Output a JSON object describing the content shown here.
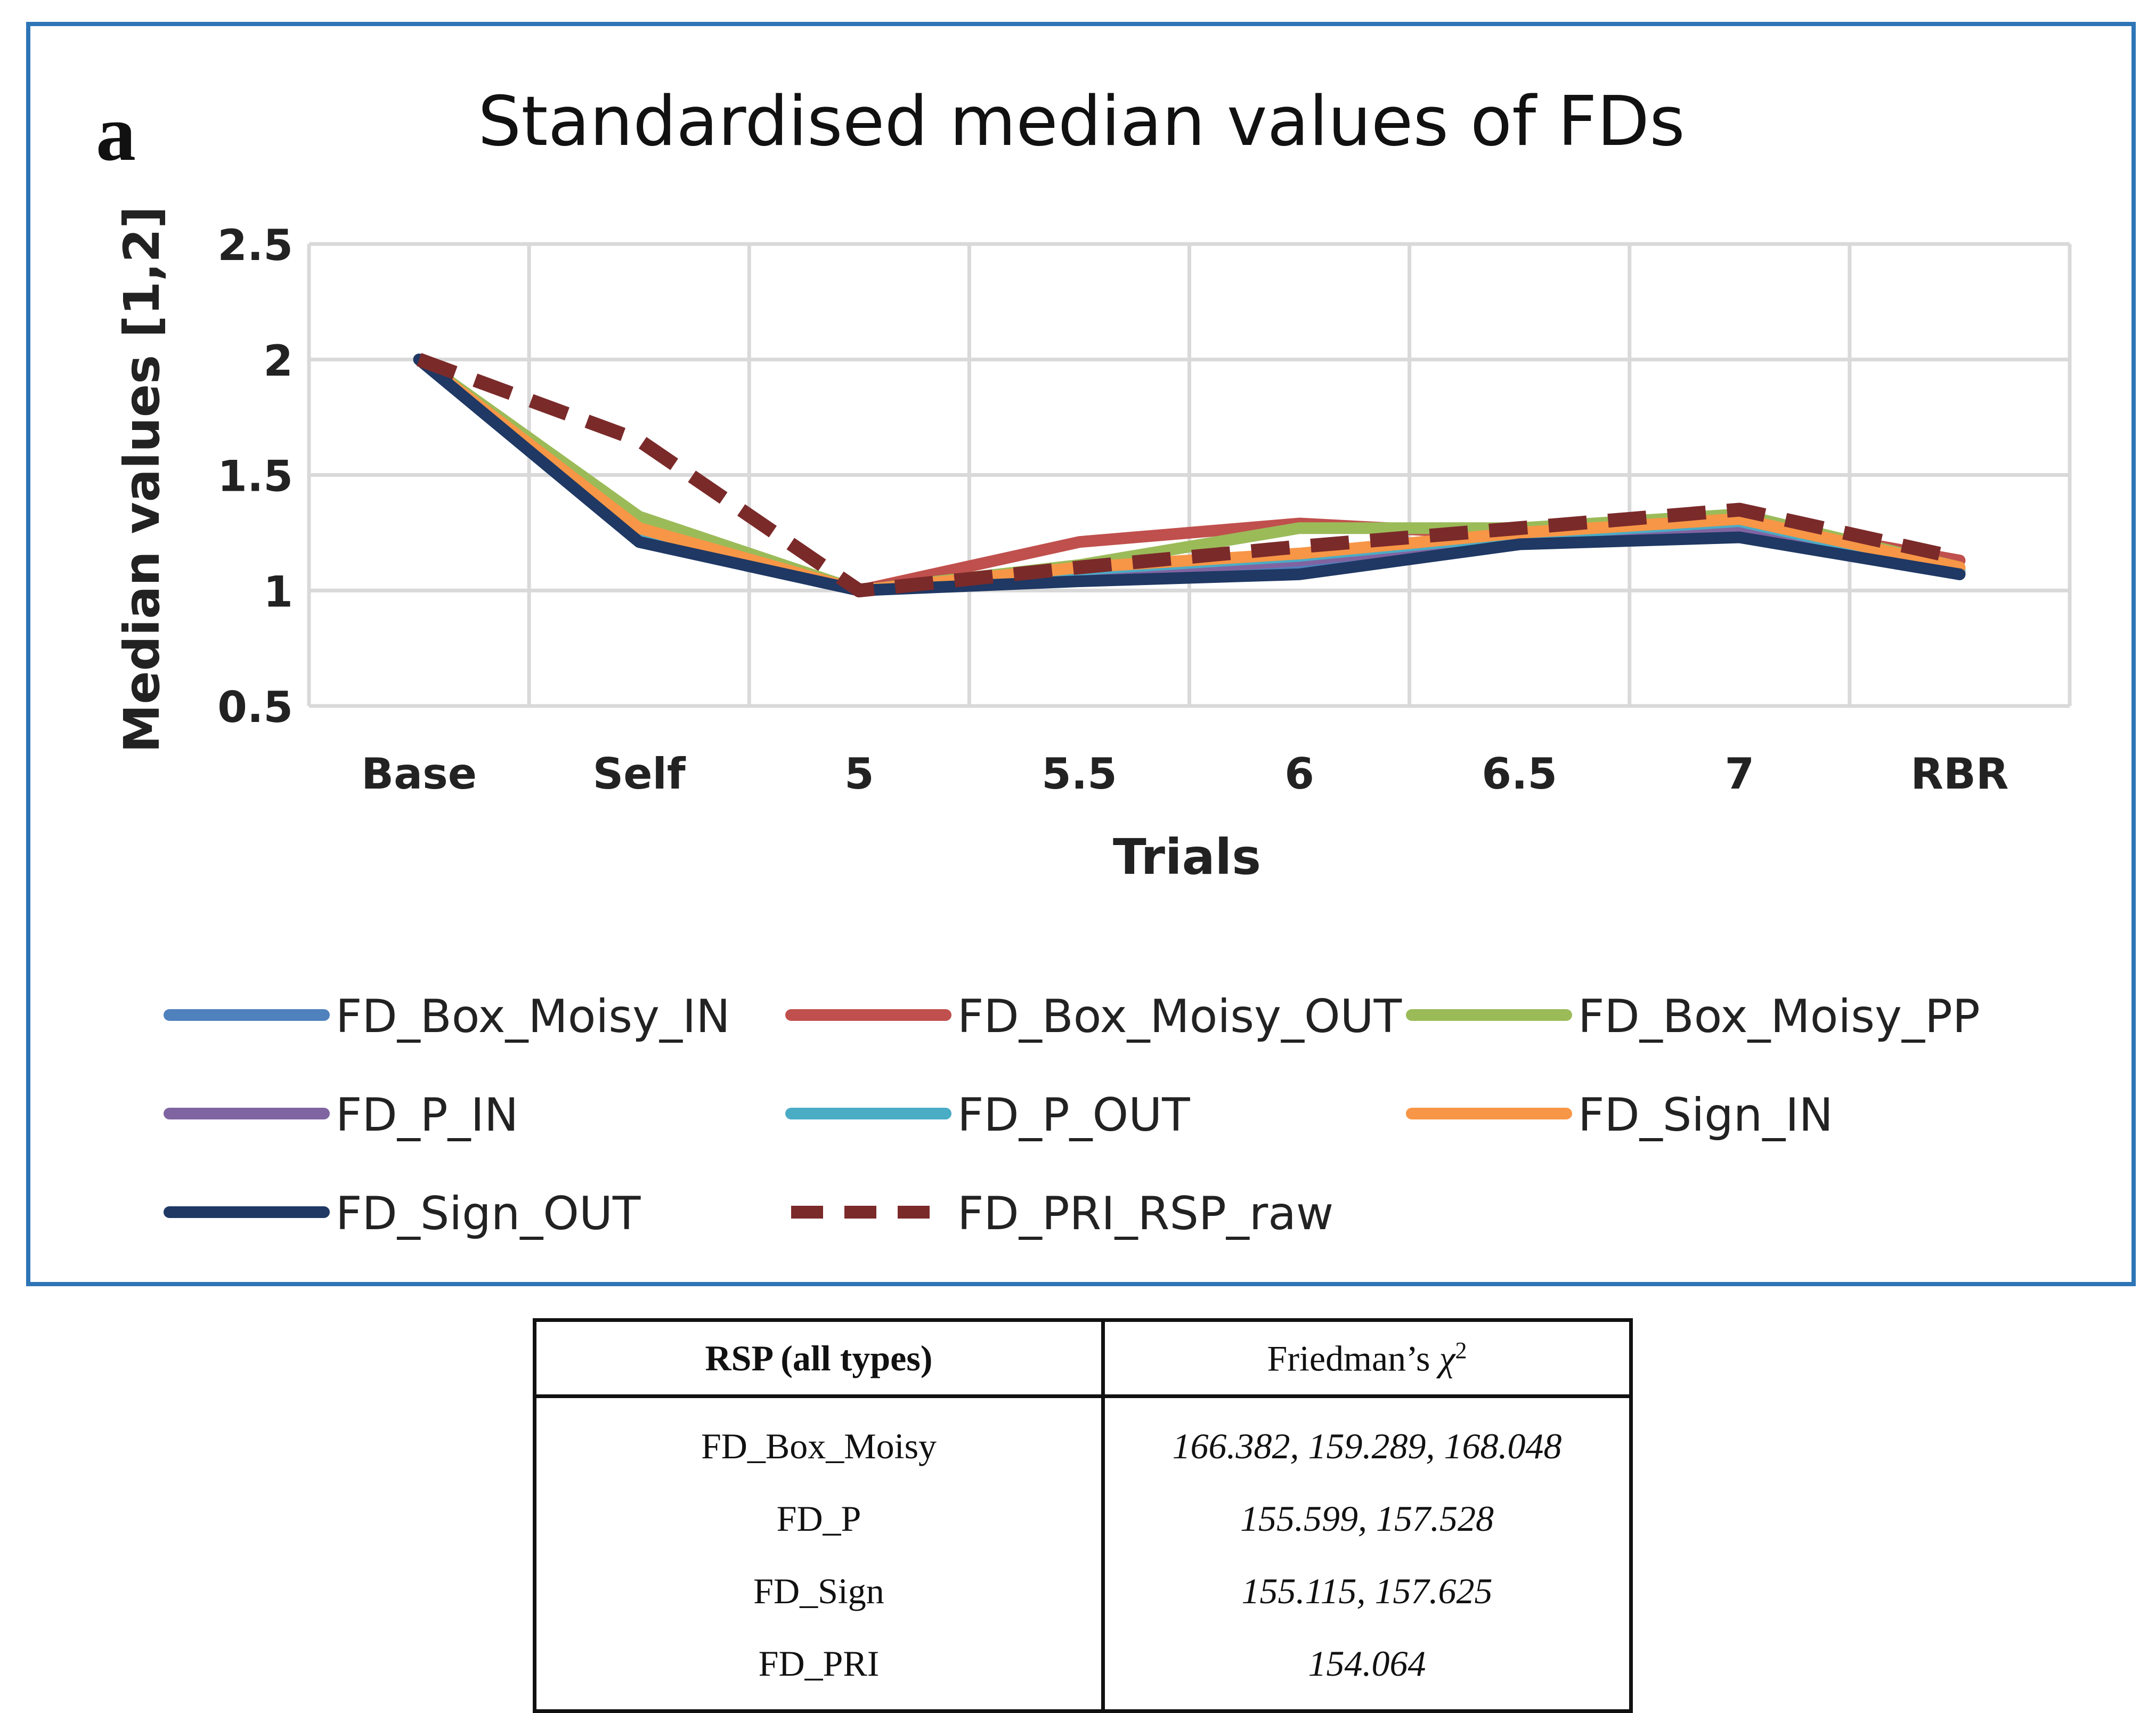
{
  "panel_label": "a",
  "chart_data": {
    "type": "line",
    "title": "Standardised median values of FDs",
    "xlabel": "Trials",
    "ylabel": "Median values [1,2]",
    "categories": [
      "Base",
      "Self",
      "5",
      "5.5",
      "6",
      "6.5",
      "7",
      "RBR"
    ],
    "ylim": [
      0.5,
      2.5
    ],
    "yticks": [
      "0.5",
      "1",
      "1.5",
      "2",
      "2.5"
    ],
    "grid": true,
    "legend_position": "bottom",
    "series": [
      {
        "name": "FD_Box_Moisy_IN",
        "color": "#4F81BD",
        "dash": false,
        "values": [
          2.0,
          1.22,
          1.0,
          1.06,
          1.12,
          1.22,
          1.27,
          1.07
        ]
      },
      {
        "name": "FD_Box_Moisy_OUT",
        "color": "#C0504D",
        "dash": false,
        "values": [
          2.0,
          1.27,
          1.0,
          1.21,
          1.29,
          1.24,
          1.3,
          1.13
        ]
      },
      {
        "name": "FD_Box_Moisy_PP",
        "color": "#9BBB59",
        "dash": false,
        "values": [
          2.0,
          1.32,
          1.0,
          1.11,
          1.27,
          1.27,
          1.33,
          1.1
        ]
      },
      {
        "name": "FD_P_IN",
        "color": "#8064A2",
        "dash": false,
        "values": [
          2.0,
          1.24,
          1.0,
          1.07,
          1.13,
          1.23,
          1.28,
          1.08
        ]
      },
      {
        "name": "FD_P_OUT",
        "color": "#4BACC6",
        "dash": false,
        "values": [
          2.0,
          1.25,
          1.0,
          1.09,
          1.15,
          1.24,
          1.3,
          1.09
        ]
      },
      {
        "name": "FD_Sign_IN",
        "color": "#F79646",
        "dash": false,
        "values": [
          2.0,
          1.27,
          1.0,
          1.1,
          1.16,
          1.25,
          1.31,
          1.1
        ]
      },
      {
        "name": "FD_Sign_OUT",
        "color": "#1F3864",
        "dash": false,
        "values": [
          2.0,
          1.21,
          1.0,
          1.04,
          1.07,
          1.2,
          1.23,
          1.07
        ]
      },
      {
        "name": "FD_PRI_RSP_raw",
        "color": "#7B2A2A",
        "dash": true,
        "values": [
          2.0,
          1.65,
          1.0,
          1.1,
          1.19,
          1.27,
          1.35,
          1.14
        ]
      }
    ]
  },
  "table": {
    "header_left": "RSP (all types)",
    "header_right_text": "Friedman’s ",
    "header_right_symbol": "χ",
    "header_right_sup": "2",
    "rows": [
      {
        "name": "FD_Box_Moisy",
        "values": "166.382, 159.289, 168.048"
      },
      {
        "name": "FD_P",
        "values": "155.599, 157.528"
      },
      {
        "name": "FD_Sign",
        "values": "155.115, 157.625"
      },
      {
        "name": "FD_PRI",
        "values": "154.064"
      }
    ]
  }
}
